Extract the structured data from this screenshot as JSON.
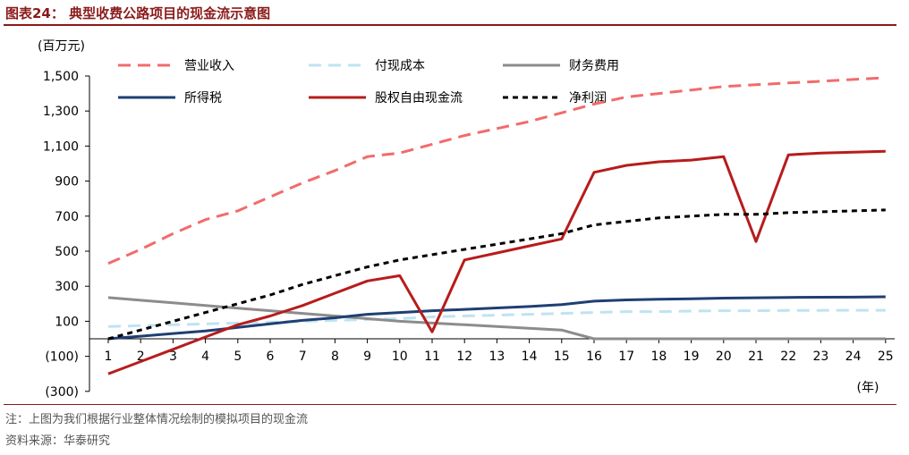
{
  "header": {
    "title": "图表24：  典型收费公路项目的现金流示意图"
  },
  "footer": {
    "note": "注：上图为我们根据行业整体情况绘制的模拟项目的现金流",
    "source": "资料来源：华泰研究"
  },
  "chart_data": {
    "type": "line",
    "title": "",
    "ylabel": "(百万元)",
    "xlabel": "(年)",
    "ylim": [
      -300,
      1500
    ],
    "yticks": [
      -300,
      -100,
      100,
      300,
      500,
      700,
      900,
      1100,
      1300,
      1500
    ],
    "ytick_labels": [
      "(300)",
      "(100)",
      "100",
      "300",
      "500",
      "700",
      "900",
      "1,100",
      "1,300",
      "1,500"
    ],
    "x": [
      1,
      2,
      3,
      4,
      5,
      6,
      7,
      8,
      9,
      10,
      11,
      12,
      13,
      14,
      15,
      16,
      17,
      18,
      19,
      20,
      21,
      22,
      23,
      24,
      25
    ],
    "xtick_labels": [
      "1",
      "2",
      "3",
      "4",
      "5",
      "6",
      "7",
      "8",
      "9",
      "10",
      "11",
      "12",
      "13",
      "14",
      "15",
      "16",
      "17",
      "18",
      "19",
      "20",
      "21",
      "22",
      "23",
      "24",
      "25"
    ],
    "grid": false,
    "legend_position": "top",
    "series": [
      {
        "name": "营业收入",
        "color": "#F26B6B",
        "dash": "long-dash",
        "values": [
          430,
          510,
          600,
          680,
          730,
          810,
          890,
          960,
          1040,
          1060,
          1110,
          1160,
          1200,
          1240,
          1290,
          1340,
          1380,
          1400,
          1420,
          1440,
          1450,
          1460,
          1470,
          1480,
          1490
        ]
      },
      {
        "name": "付现成本",
        "color": "#BFE3F2",
        "dash": "long-dash",
        "values": [
          70,
          75,
          80,
          85,
          90,
          95,
          100,
          105,
          110,
          115,
          125,
          130,
          135,
          140,
          145,
          150,
          155,
          155,
          158,
          160,
          160,
          162,
          162,
          163,
          163
        ]
      },
      {
        "name": "财务费用",
        "color": "#8C8C8C",
        "dash": "solid",
        "values": [
          235,
          220,
          205,
          190,
          175,
          160,
          145,
          130,
          115,
          100,
          90,
          80,
          70,
          60,
          50,
          0,
          0,
          0,
          0,
          0,
          0,
          0,
          0,
          0,
          0
        ]
      },
      {
        "name": "所得税",
        "color": "#1F3F73",
        "dash": "solid",
        "values": [
          0,
          15,
          30,
          45,
          65,
          85,
          105,
          120,
          140,
          150,
          160,
          168,
          176,
          184,
          195,
          215,
          222,
          226,
          228,
          232,
          234,
          236,
          237,
          238,
          240
        ]
      },
      {
        "name": "股权自由现金流",
        "color": "#B71C1C",
        "dash": "solid",
        "values": [
          -200,
          -130,
          -60,
          10,
          80,
          130,
          190,
          260,
          330,
          360,
          40,
          450,
          490,
          530,
          570,
          950,
          990,
          1010,
          1020,
          1040,
          555,
          1050,
          1060,
          1065,
          1070
        ]
      },
      {
        "name": "净利润",
        "color": "#000000",
        "dash": "short-dash",
        "values": [
          0,
          50,
          100,
          150,
          200,
          250,
          310,
          360,
          410,
          450,
          480,
          510,
          540,
          570,
          600,
          650,
          670,
          690,
          700,
          710,
          710,
          720,
          725,
          730,
          735
        ]
      }
    ]
  }
}
